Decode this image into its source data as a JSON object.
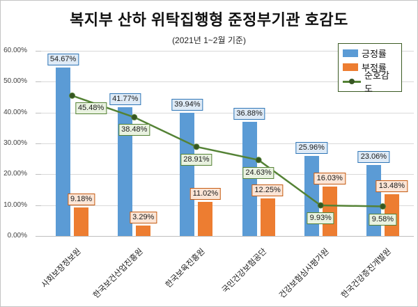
{
  "title": "복지부 산하 위탁집행형 준정부기관 호감도",
  "subtitle": "(2021년 1~2월 기준)",
  "chart_data": {
    "type": "bar",
    "categories": [
      "사회보장정보원",
      "한국보건산업진흥원",
      "한국보육진흥원",
      "국민건강보험공단",
      "건강보험심사평가원",
      "한국건강증진개발원"
    ],
    "series": [
      {
        "name": "긍정률",
        "type": "bar",
        "color": "#5B9BD5",
        "values": [
          54.67,
          41.77,
          39.94,
          36.88,
          25.96,
          23.06
        ]
      },
      {
        "name": "부정률",
        "type": "bar",
        "color": "#ED7D31",
        "values": [
          9.18,
          3.29,
          11.02,
          12.25,
          16.03,
          13.48
        ]
      },
      {
        "name": "순호감도",
        "type": "line",
        "color": "#548235",
        "marker_color": "#375623",
        "values": [
          45.48,
          38.48,
          28.91,
          24.63,
          9.93,
          9.58
        ]
      }
    ],
    "ylim": [
      0,
      60
    ],
    "ytick_step": 10,
    "ytick_labels": [
      "0.00%",
      "10.00%",
      "20.00%",
      "30.00%",
      "40.00%",
      "50.00%",
      "60.00%"
    ],
    "value_suffix": "%",
    "grid": true,
    "legend_position": "top-right",
    "label_box_colors": {
      "positive": {
        "bg": "#DEEAF6",
        "border": "#2E75B6"
      },
      "negative": {
        "bg": "#FBE5D6",
        "border": "#C55A11"
      },
      "net": {
        "bg": "#E9F2E0",
        "border": "#548235"
      }
    }
  }
}
